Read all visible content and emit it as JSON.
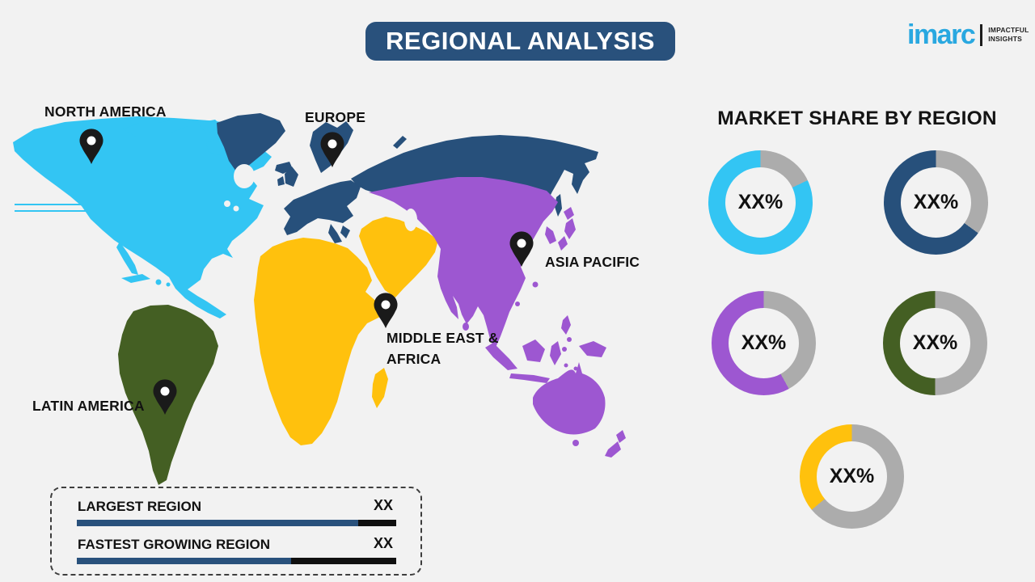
{
  "header": {
    "title": "REGIONAL ANALYSIS",
    "banner_color": "#29517C",
    "text_color": "#FFFFFF"
  },
  "logo": {
    "brand": "imarc",
    "tagline_line1": "IMPACTFUL",
    "tagline_line2": "INSIGHTS",
    "brand_color": "#29A8E0"
  },
  "map": {
    "regions": [
      {
        "id": "north-america",
        "label": "NORTH AMERICA",
        "color": "#33C5F3"
      },
      {
        "id": "europe",
        "label": "EUROPE",
        "color": "#27507B"
      },
      {
        "id": "asia-pacific",
        "label": "ASIA PACIFIC",
        "color": "#9D57D1"
      },
      {
        "id": "middle-east-africa",
        "label_line1": "MIDDLE EAST &",
        "label_line2": "AFRICA",
        "color": "#FFC10D"
      },
      {
        "id": "latin-america",
        "label": "LATIN AMERICA",
        "color": "#445F23"
      }
    ]
  },
  "market_share": {
    "title": "MARKET SHARE BY REGION",
    "donuts": [
      {
        "region": "North America",
        "value_label": "XX%",
        "color": "#33C5F3",
        "track_color": "#ACACAC",
        "track_pct": 18
      },
      {
        "region": "Europe",
        "value_label": "XX%",
        "color": "#27507B",
        "track_color": "#ACACAC",
        "track_pct": 35
      },
      {
        "region": "Asia Pacific",
        "value_label": "XX%",
        "color": "#9D57D1",
        "track_color": "#ACACAC",
        "track_pct": 42
      },
      {
        "region": "Latin America",
        "value_label": "XX%",
        "color": "#445F23",
        "track_color": "#ACACAC",
        "track_pct": 50
      },
      {
        "region": "Middle East & Africa",
        "value_label": "XX%",
        "color": "#FFC10D",
        "track_color": "#ACACAC",
        "track_pct": 64
      }
    ]
  },
  "footer_stats": {
    "rows": [
      {
        "label": "LARGEST REGION",
        "value": "XX",
        "bar_primary_pct": 88,
        "bar_primary_color": "#29517C",
        "bar_track_color": "#101010"
      },
      {
        "label": "FASTEST GROWING REGION",
        "value": "XX",
        "bar_primary_pct": 67,
        "bar_primary_color": "#29517C",
        "bar_track_color": "#101010"
      }
    ]
  },
  "chart_data": [
    {
      "type": "pie",
      "title": "MARKET SHARE BY REGION",
      "legend_position": "none",
      "series": [
        {
          "name": "North America",
          "color": "#33C5F3",
          "center_label": "XX%",
          "filled_fraction_est": 0.82
        },
        {
          "name": "Europe",
          "color": "#27507B",
          "center_label": "XX%",
          "filled_fraction_est": 0.65
        },
        {
          "name": "Asia Pacific",
          "color": "#9D57D1",
          "center_label": "XX%",
          "filled_fraction_est": 0.58
        },
        {
          "name": "Latin America",
          "color": "#445F23",
          "center_label": "XX%",
          "filled_fraction_est": 0.5
        },
        {
          "name": "Middle East & Africa",
          "color": "#FFC10D",
          "center_label": "XX%",
          "filled_fraction_est": 0.36
        }
      ]
    },
    {
      "type": "bar",
      "categories": [
        "LARGEST REGION",
        "FASTEST GROWING REGION"
      ],
      "values": [
        "XX",
        "XX"
      ],
      "bar_fill_fraction_est": [
        0.88,
        0.67
      ]
    }
  ]
}
